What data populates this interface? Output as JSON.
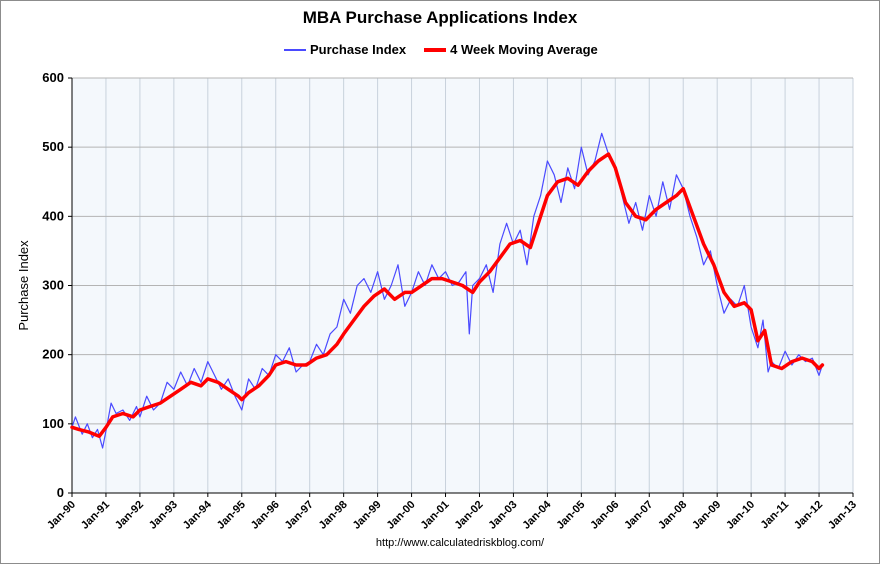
{
  "chart_data": {
    "type": "line",
    "title": "MBA Purchase Applications Index",
    "ylabel": "Purchase Index",
    "xlabel": "",
    "ylim": [
      0,
      600
    ],
    "xlim": [
      1990,
      2013
    ],
    "yticks": [
      0,
      100,
      200,
      300,
      400,
      500,
      600
    ],
    "xtick_labels": [
      "Jan-90",
      "Jan-91",
      "Jan-92",
      "Jan-93",
      "Jan-94",
      "Jan-95",
      "Jan-96",
      "Jan-97",
      "Jan-98",
      "Jan-99",
      "Jan-00",
      "Jan-01",
      "Jan-02",
      "Jan-03",
      "Jan-04",
      "Jan-05",
      "Jan-06",
      "Jan-07",
      "Jan-08",
      "Jan-09",
      "Jan-10",
      "Jan-11",
      "Jan-12",
      "Jan-13"
    ],
    "grid": true,
    "legend_position": "top",
    "series": [
      {
        "name": "Purchase Index",
        "color": "#4a4aff",
        "x": [
          1990.0,
          1990.1,
          1990.3,
          1990.45,
          1990.6,
          1990.75,
          1990.9,
          1991.0,
          1991.15,
          1991.3,
          1991.5,
          1991.7,
          1991.9,
          1992.0,
          1992.2,
          1992.4,
          1992.6,
          1992.8,
          1993.0,
          1993.2,
          1993.4,
          1993.6,
          1993.8,
          1994.0,
          1994.2,
          1994.4,
          1994.6,
          1994.8,
          1995.0,
          1995.2,
          1995.4,
          1995.6,
          1995.8,
          1996.0,
          1996.2,
          1996.4,
          1996.6,
          1996.8,
          1997.0,
          1997.2,
          1997.4,
          1997.6,
          1997.8,
          1998.0,
          1998.2,
          1998.4,
          1998.6,
          1998.8,
          1999.0,
          1999.2,
          1999.4,
          1999.6,
          1999.8,
          2000.0,
          2000.2,
          2000.4,
          2000.6,
          2000.8,
          2001.0,
          2001.2,
          2001.4,
          2001.6,
          2001.7,
          2001.8,
          2002.0,
          2002.2,
          2002.4,
          2002.6,
          2002.8,
          2003.0,
          2003.2,
          2003.4,
          2003.6,
          2003.8,
          2004.0,
          2004.2,
          2004.4,
          2004.6,
          2004.8,
          2005.0,
          2005.2,
          2005.4,
          2005.6,
          2005.8,
          2006.0,
          2006.2,
          2006.4,
          2006.6,
          2006.8,
          2007.0,
          2007.2,
          2007.4,
          2007.6,
          2007.8,
          2008.0,
          2008.2,
          2008.4,
          2008.6,
          2008.8,
          2009.0,
          2009.2,
          2009.4,
          2009.6,
          2009.8,
          2010.0,
          2010.2,
          2010.35,
          2010.5,
          2010.6,
          2010.8,
          2011.0,
          2011.2,
          2011.4,
          2011.6,
          2011.8,
          2012.0,
          2012.1
        ],
        "values": [
          95,
          110,
          85,
          100,
          80,
          92,
          65,
          90,
          130,
          115,
          120,
          105,
          125,
          110,
          140,
          120,
          130,
          160,
          150,
          175,
          155,
          180,
          160,
          190,
          170,
          150,
          165,
          140,
          120,
          165,
          150,
          180,
          170,
          200,
          190,
          210,
          175,
          185,
          190,
          215,
          200,
          230,
          240,
          280,
          260,
          300,
          310,
          290,
          320,
          280,
          300,
          330,
          270,
          290,
          320,
          300,
          330,
          310,
          320,
          300,
          305,
          320,
          230,
          300,
          310,
          330,
          290,
          360,
          390,
          360,
          380,
          330,
          400,
          430,
          480,
          460,
          420,
          470,
          440,
          500,
          460,
          480,
          520,
          490,
          470,
          430,
          390,
          420,
          380,
          430,
          400,
          450,
          410,
          460,
          440,
          400,
          370,
          330,
          350,
          300,
          260,
          280,
          270,
          300,
          240,
          210,
          250,
          175,
          190,
          180,
          205,
          185,
          200,
          190,
          195,
          170,
          185
        ]
      },
      {
        "name": "4 Week Moving Average",
        "color": "#ff0000",
        "x": [
          1990.0,
          1990.2,
          1990.5,
          1990.8,
          1991.0,
          1991.2,
          1991.5,
          1991.8,
          1992.0,
          1992.3,
          1992.6,
          1992.9,
          1993.2,
          1993.5,
          1993.8,
          1994.0,
          1994.3,
          1994.6,
          1994.9,
          1995.0,
          1995.2,
          1995.5,
          1995.8,
          1996.0,
          1996.3,
          1996.6,
          1996.9,
          1997.2,
          1997.5,
          1997.8,
          1998.0,
          1998.3,
          1998.6,
          1998.9,
          1999.2,
          1999.5,
          1999.8,
          2000.0,
          2000.3,
          2000.6,
          2000.9,
          2001.2,
          2001.5,
          2001.8,
          2002.0,
          2002.3,
          2002.6,
          2002.9,
          2003.2,
          2003.5,
          2003.8,
          2004.0,
          2004.3,
          2004.6,
          2004.9,
          2005.2,
          2005.5,
          2005.8,
          2006.0,
          2006.3,
          2006.6,
          2006.9,
          2007.2,
          2007.5,
          2007.8,
          2008.0,
          2008.3,
          2008.6,
          2008.9,
          2009.2,
          2009.5,
          2009.8,
          2010.0,
          2010.2,
          2010.4,
          2010.6,
          2010.9,
          2011.2,
          2011.5,
          2011.8,
          2012.0,
          2012.1
        ],
        "values": [
          95,
          92,
          88,
          82,
          95,
          110,
          115,
          110,
          120,
          125,
          130,
          140,
          150,
          160,
          155,
          165,
          160,
          150,
          140,
          135,
          145,
          155,
          170,
          185,
          190,
          185,
          185,
          195,
          200,
          215,
          230,
          250,
          270,
          285,
          295,
          280,
          290,
          290,
          300,
          310,
          310,
          305,
          300,
          290,
          305,
          320,
          340,
          360,
          365,
          355,
          400,
          430,
          450,
          455,
          445,
          465,
          480,
          490,
          470,
          420,
          400,
          395,
          410,
          420,
          430,
          440,
          400,
          360,
          330,
          290,
          270,
          275,
          265,
          220,
          235,
          185,
          180,
          190,
          195,
          190,
          180,
          185
        ]
      }
    ]
  },
  "source": "http://www.calculatedriskblog.com/"
}
